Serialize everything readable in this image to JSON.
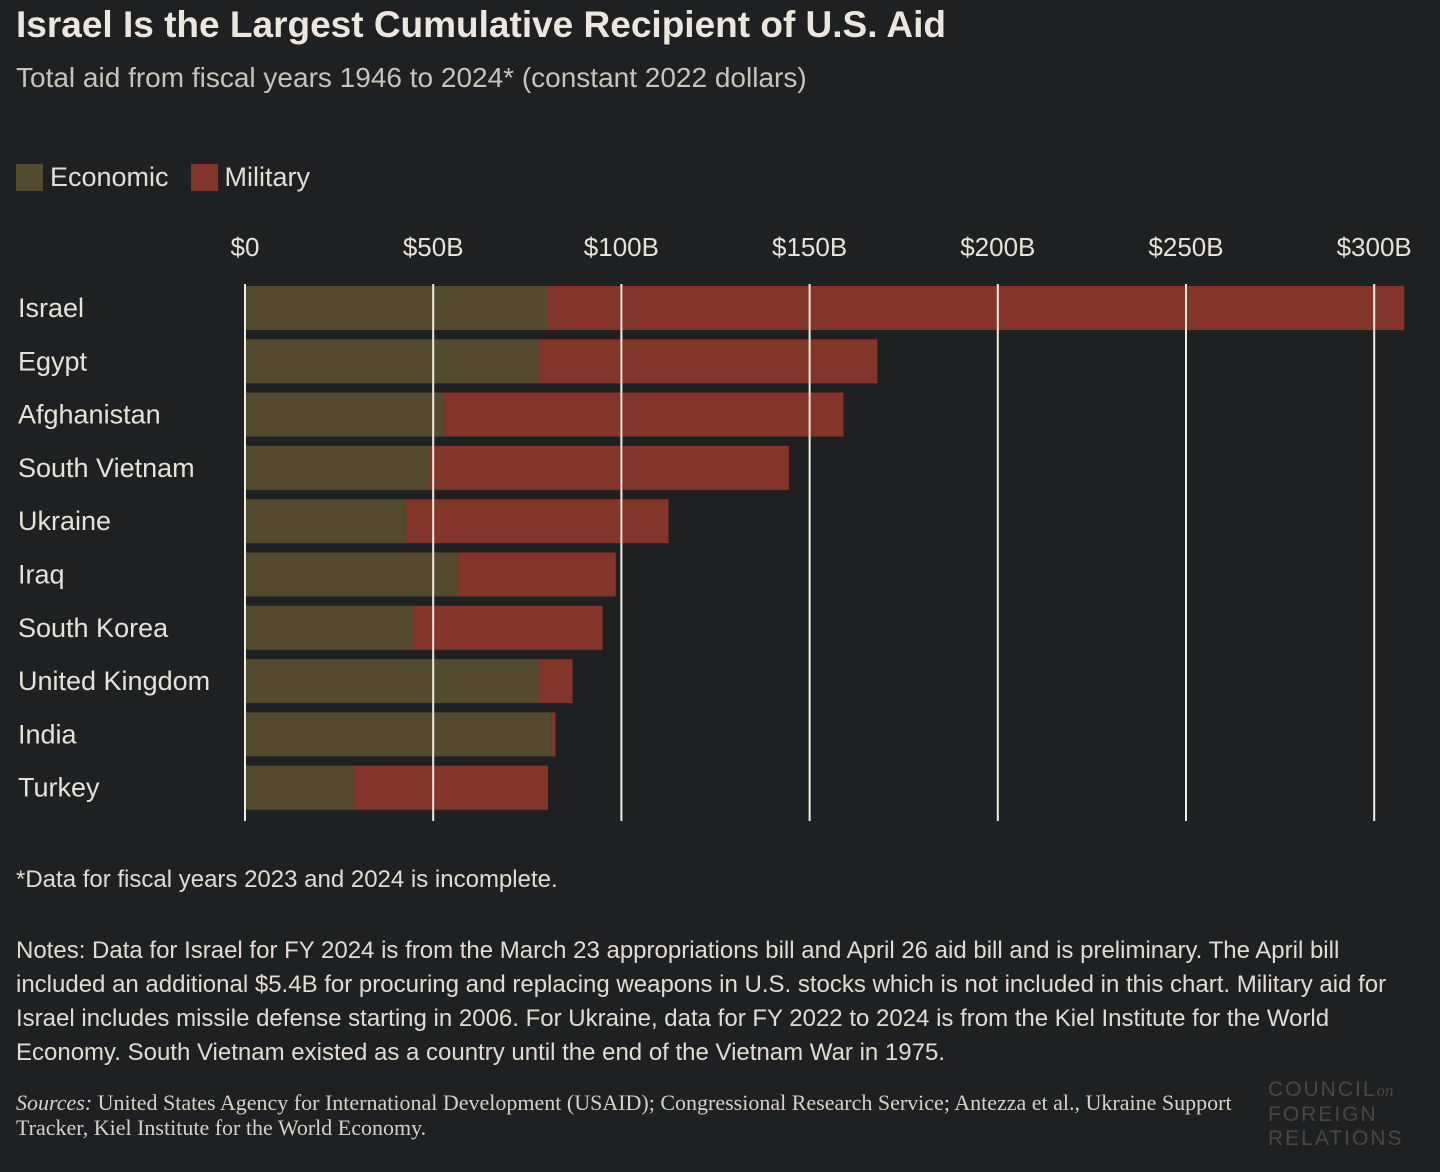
{
  "title": "Israel Is the Largest Cumulative Recipient of U.S. Aid",
  "subtitle": "Total aid from fiscal years 1946 to 2024* (constant 2022 dollars)",
  "colors": {
    "background": "#1f2021",
    "economic": "#544a2d",
    "military": "#84352a",
    "gridline": "#f0ece4",
    "text": "#e6e2da"
  },
  "chart_data": {
    "type": "bar",
    "orientation": "horizontal",
    "stacked": true,
    "title": "Israel Is the Largest Cumulative Recipient of U.S. Aid",
    "subtitle": "Total aid from fiscal years 1946 to 2024* (constant 2022 dollars)",
    "categories": [
      "Israel",
      "Egypt",
      "Afghanistan",
      "South Vietnam",
      "Ukraine",
      "Iraq",
      "South Korea",
      "United Kingdom",
      "India",
      "Turkey"
    ],
    "series": [
      {
        "name": "Economic",
        "color": "#544a2d",
        "values": [
          80.5,
          78,
          53,
          49,
          42.5,
          56.5,
          44.5,
          78,
          81.5,
          29
        ]
      },
      {
        "name": "Military",
        "color": "#84352a",
        "values": [
          227.5,
          90,
          106,
          95.5,
          70,
          42,
          50.5,
          9,
          1,
          51.5
        ]
      }
    ],
    "xaxis": {
      "position": "top",
      "ticks": [
        0,
        50,
        100,
        150,
        200,
        250,
        300
      ],
      "tick_labels": [
        "$0",
        "$50B",
        "$100B",
        "$150B",
        "$200B",
        "$250B",
        "$300B"
      ],
      "range": [
        0,
        310
      ]
    },
    "grid": true,
    "legend": "top-left"
  },
  "legend": {
    "economic_label": "Economic",
    "military_label": "Military"
  },
  "footnote": "*Data for fiscal years 2023 and 2024 is incomplete.",
  "notes": "Notes: Data for Israel for FY 2024 is from the March 23 appropriations bill and April 26 aid bill and is preliminary. The April bill included an additional $5.4B for procuring and replacing weapons in U.S. stocks which is not included in this chart. Military aid for Israel includes missile defense starting in 2006. For Ukraine, data for FY 2022 to 2024 is from the Kiel Institute for the World Economy. South Vietnam existed as a country until the end of the Vietnam War in 1975.",
  "sources": {
    "label": "Sources:",
    "text": " United States Agency for International Development (USAID); Congressional Research Service; Antezza et al., Ukraine Support Tracker, Kiel Institute for the World Economy."
  },
  "logo": {
    "line1": "COUNCIL",
    "line1_suffix": "on",
    "line2": "FOREIGN",
    "line3": "RELATIONS"
  }
}
